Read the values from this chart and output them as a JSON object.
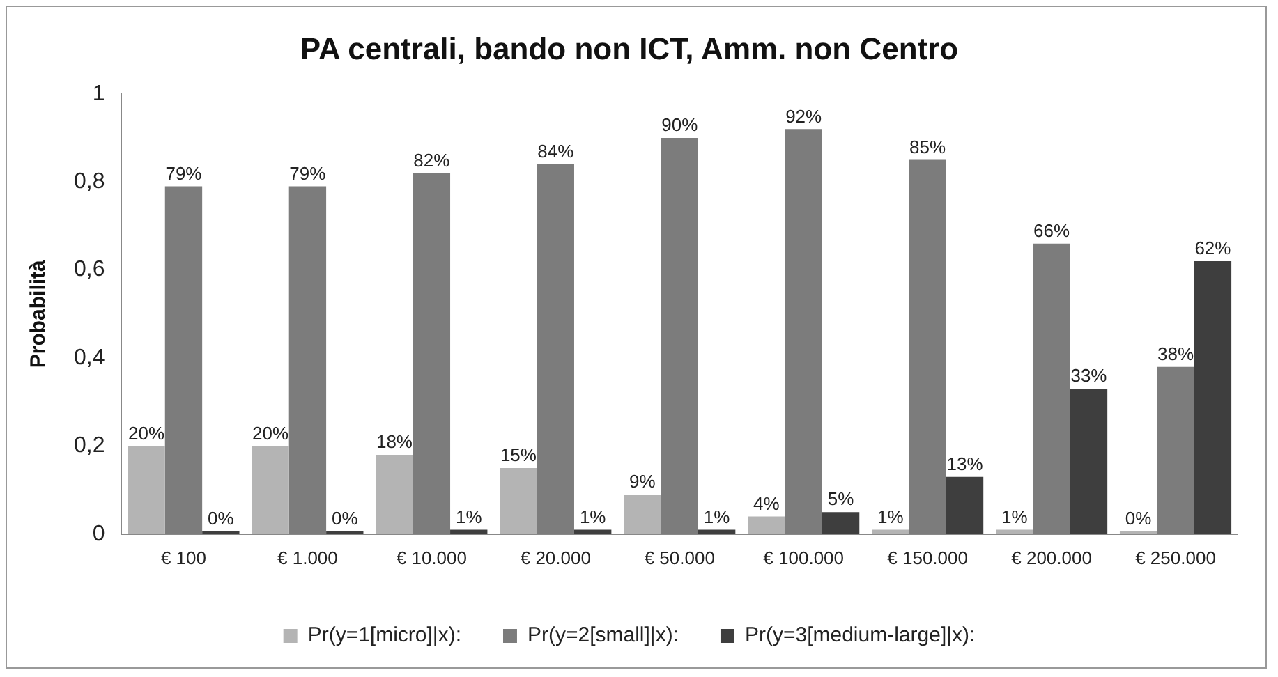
{
  "chart_data": {
    "type": "bar",
    "title": "PA centrali, bando non ICT, Amm. non Centro",
    "ylabel": "Probabilità",
    "categories": [
      "€ 100",
      "€ 1.000",
      "€ 10.000",
      "€ 20.000",
      "€ 50.000",
      "€ 100.000",
      "€ 150.000",
      "€ 200.000",
      "€ 250.000"
    ],
    "series": [
      {
        "name": "Pr(y=1[micro]|x):",
        "color": "#b4b4b4",
        "values": [
          0.2,
          0.2,
          0.18,
          0.15,
          0.09,
          0.04,
          0.01,
          0.01,
          0
        ],
        "value_labels": [
          "20%",
          "20%",
          "18%",
          "15%",
          "9%",
          "4%",
          "1%",
          "1%",
          "0%"
        ]
      },
      {
        "name": "Pr(y=2[small]|x):",
        "color": "#7c7c7c",
        "values": [
          0.79,
          0.79,
          0.82,
          0.84,
          0.9,
          0.92,
          0.85,
          0.66,
          0.38
        ],
        "value_labels": [
          "79%",
          "79%",
          "82%",
          "84%",
          "90%",
          "92%",
          "85%",
          "66%",
          "38%"
        ]
      },
      {
        "name": "Pr(y=3[medium-large]|x):",
        "color": "#3e3e3e",
        "values": [
          0,
          0,
          0.01,
          0.01,
          0.01,
          0.05,
          0.13,
          0.33,
          0.62
        ],
        "value_labels": [
          "0%",
          "0%",
          "1%",
          "1%",
          "1%",
          "5%",
          "13%",
          "33%",
          "62%"
        ]
      }
    ],
    "ylim": [
      0,
      1
    ],
    "yticks": [
      0,
      {
        "value": 0.2,
        "label": "0,2"
      },
      {
        "value": 0.4,
        "label": "0,4"
      },
      {
        "value": 0.6,
        "label": "0,6"
      },
      {
        "value": 0.8,
        "label": "0,8"
      },
      1
    ],
    "grid": false,
    "legend": "bottom"
  }
}
